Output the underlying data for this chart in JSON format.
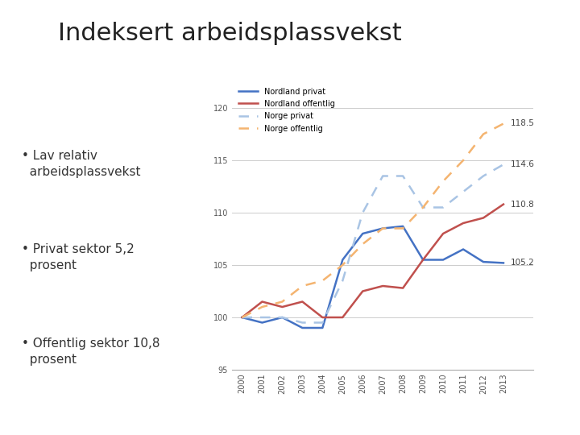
{
  "title": "Indeksert arbeidsplassvekst",
  "years": [
    2000,
    2001,
    2002,
    2003,
    2004,
    2005,
    2006,
    2007,
    2008,
    2009,
    2010,
    2011,
    2012,
    2013
  ],
  "nordland_privat": [
    100.0,
    99.5,
    100.0,
    99.0,
    99.0,
    105.5,
    108.0,
    108.5,
    108.7,
    105.5,
    105.5,
    106.5,
    105.3,
    105.2
  ],
  "nordland_offentlig": [
    100.0,
    101.5,
    101.0,
    101.5,
    100.0,
    100.0,
    102.5,
    103.0,
    102.8,
    105.5,
    108.0,
    109.0,
    109.5,
    110.8
  ],
  "norge_privat": [
    100.0,
    100.0,
    100.0,
    99.5,
    99.5,
    103.5,
    110.0,
    113.5,
    113.5,
    110.5,
    110.5,
    112.0,
    113.5,
    114.6
  ],
  "norge_offentlig": [
    100.0,
    101.0,
    101.5,
    103.0,
    103.5,
    105.0,
    107.0,
    108.5,
    108.5,
    110.5,
    113.0,
    115.0,
    117.5,
    118.5
  ],
  "end_labels": {
    "nordland_privat": "105.2",
    "nordland_offentlig": "110.8",
    "norge_privat": "114.6",
    "norge_offentlig": "118.5"
  },
  "colors": {
    "nordland_privat": "#4472C4",
    "nordland_offentlig": "#C0504D",
    "norge_privat": "#A9C4E4",
    "norge_offentlig": "#F4B470"
  },
  "legend_labels": [
    "Nordland privat",
    "Nordland offentlig",
    "Norge privat",
    "Norge offentlig"
  ],
  "ylim": [
    95,
    122
  ],
  "yticks": [
    95,
    100,
    105,
    110,
    115,
    120
  ],
  "bullet_points": [
    "• Lav relativ\n  arbeidsplassvekst",
    "• Privat sektor 5,2\n  prosent",
    "• Offentlig sektor 10,8\n  prosent"
  ],
  "background_color": "#ffffff",
  "title_fontsize": 22,
  "axis_fontsize": 7,
  "label_fontsize": 7.5,
  "bullet_fontsize": 11
}
